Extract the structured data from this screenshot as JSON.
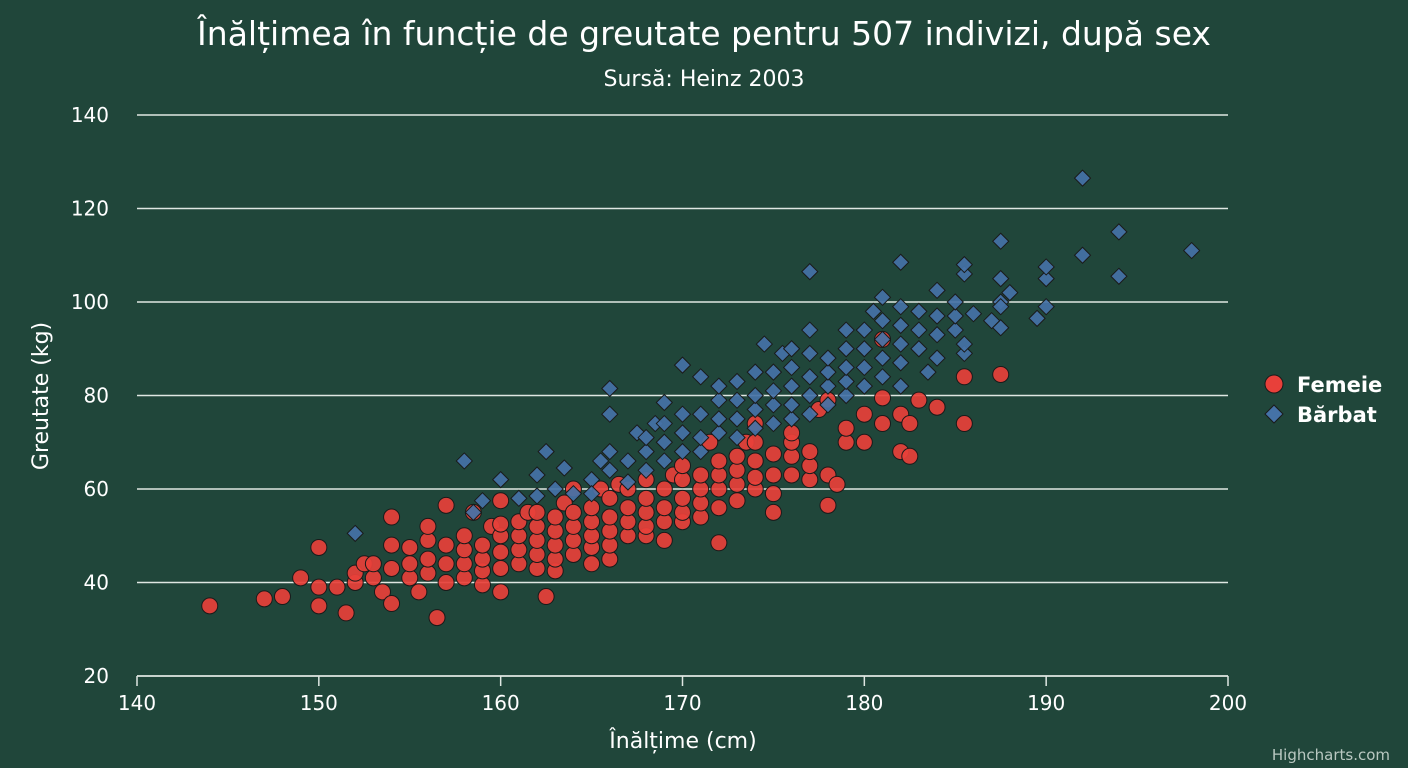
{
  "chart_data": {
    "type": "scatter",
    "title": "Înălțimea în funcție de greutate pentru 507 indivizi, după sex",
    "subtitle": "Sursă: Heinz 2003",
    "xlabel": "Înălțime (cm)",
    "ylabel": "Greutate (kg)",
    "xlim": [
      140,
      200
    ],
    "ylim": [
      20,
      140
    ],
    "xticks": [
      140,
      150,
      160,
      170,
      180,
      190,
      200
    ],
    "yticks": [
      20,
      40,
      60,
      80,
      100,
      120,
      140
    ],
    "grid": true,
    "legend_position": "right",
    "credits": "Highcharts.com",
    "series": [
      {
        "name": "Femeie",
        "color": "#e8403a",
        "marker": "circle",
        "points": [
          [
            144,
            35
          ],
          [
            147,
            36.5
          ],
          [
            148,
            37
          ],
          [
            149,
            41
          ],
          [
            150,
            35
          ],
          [
            150,
            39
          ],
          [
            150,
            47.5
          ],
          [
            151,
            39
          ],
          [
            151.5,
            33.5
          ],
          [
            152,
            40
          ],
          [
            152,
            42
          ],
          [
            152.5,
            44
          ],
          [
            153,
            41
          ],
          [
            153,
            44
          ],
          [
            153.5,
            38
          ],
          [
            154,
            43
          ],
          [
            154,
            35.5
          ],
          [
            154,
            48
          ],
          [
            154,
            54
          ],
          [
            155,
            41
          ],
          [
            155,
            44
          ],
          [
            155,
            47.5
          ],
          [
            155.5,
            38
          ],
          [
            156,
            42
          ],
          [
            156,
            45
          ],
          [
            156,
            49
          ],
          [
            156,
            52
          ],
          [
            156.5,
            32.5
          ],
          [
            157,
            40
          ],
          [
            157,
            44
          ],
          [
            157,
            48
          ],
          [
            157,
            56.5
          ],
          [
            158,
            41
          ],
          [
            158,
            44
          ],
          [
            158,
            47
          ],
          [
            158,
            50
          ],
          [
            158.5,
            55
          ],
          [
            159,
            39.5
          ],
          [
            159,
            42.5
          ],
          [
            159,
            45
          ],
          [
            159,
            48
          ],
          [
            159.5,
            52
          ],
          [
            160,
            38
          ],
          [
            160,
            43
          ],
          [
            160,
            46.5
          ],
          [
            160,
            50
          ],
          [
            160,
            52.5
          ],
          [
            160,
            57.5
          ],
          [
            161,
            44
          ],
          [
            161,
            47
          ],
          [
            161,
            50
          ],
          [
            161,
            53
          ],
          [
            161.5,
            55
          ],
          [
            162,
            43
          ],
          [
            162,
            46
          ],
          [
            162,
            49
          ],
          [
            162,
            52
          ],
          [
            162,
            55
          ],
          [
            162.5,
            37
          ],
          [
            163,
            42.5
          ],
          [
            163,
            45
          ],
          [
            163,
            48
          ],
          [
            163,
            51
          ],
          [
            163,
            54
          ],
          [
            163.5,
            57
          ],
          [
            164,
            46
          ],
          [
            164,
            49
          ],
          [
            164,
            52
          ],
          [
            164,
            55
          ],
          [
            164,
            60
          ],
          [
            165,
            44
          ],
          [
            165,
            47.5
          ],
          [
            165,
            50
          ],
          [
            165,
            53
          ],
          [
            165,
            56
          ],
          [
            165.5,
            60
          ],
          [
            166,
            45
          ],
          [
            166,
            48
          ],
          [
            166,
            51
          ],
          [
            166,
            54
          ],
          [
            166,
            58
          ],
          [
            166.5,
            61
          ],
          [
            167,
            50
          ],
          [
            167,
            53
          ],
          [
            167,
            56
          ],
          [
            167,
            60
          ],
          [
            168,
            50
          ],
          [
            168,
            52
          ],
          [
            168,
            55
          ],
          [
            168,
            58
          ],
          [
            168,
            62
          ],
          [
            169,
            49
          ],
          [
            169,
            53
          ],
          [
            169,
            56
          ],
          [
            169,
            60
          ],
          [
            169.5,
            63
          ],
          [
            170,
            53
          ],
          [
            170,
            55
          ],
          [
            170,
            58
          ],
          [
            170,
            62
          ],
          [
            170,
            65
          ],
          [
            171,
            54
          ],
          [
            171,
            57
          ],
          [
            171,
            60
          ],
          [
            171,
            63
          ],
          [
            171.5,
            70
          ],
          [
            172,
            48.5
          ],
          [
            172,
            56
          ],
          [
            172,
            60
          ],
          [
            172,
            63
          ],
          [
            172,
            66
          ],
          [
            173,
            57.5
          ],
          [
            173,
            61
          ],
          [
            173,
            64
          ],
          [
            173,
            67
          ],
          [
            173.5,
            70
          ],
          [
            174,
            60
          ],
          [
            174,
            62.5
          ],
          [
            174,
            66
          ],
          [
            174,
            70
          ],
          [
            174,
            74
          ],
          [
            175,
            55
          ],
          [
            175,
            59
          ],
          [
            175,
            63
          ],
          [
            175,
            67.5
          ],
          [
            176,
            63
          ],
          [
            176,
            67
          ],
          [
            176,
            70
          ],
          [
            176,
            72
          ],
          [
            177,
            62
          ],
          [
            177,
            65
          ],
          [
            177,
            68
          ],
          [
            177.5,
            77
          ],
          [
            178,
            56.5
          ],
          [
            178,
            63
          ],
          [
            178,
            79
          ],
          [
            178.5,
            61
          ],
          [
            179,
            70
          ],
          [
            179,
            73
          ],
          [
            180,
            70
          ],
          [
            180,
            76
          ],
          [
            181,
            74
          ],
          [
            181,
            79.5
          ],
          [
            181,
            92
          ],
          [
            182,
            68
          ],
          [
            182,
            76
          ],
          [
            182.5,
            67
          ],
          [
            182.5,
            74
          ],
          [
            183,
            79
          ],
          [
            184,
            77.5
          ],
          [
            185.5,
            74
          ],
          [
            185.5,
            84
          ],
          [
            187.5,
            84.5
          ]
        ]
      },
      {
        "name": "Bărbat",
        "color": "#4572a7",
        "marker": "diamond",
        "points": [
          [
            152,
            50.5
          ],
          [
            158,
            66
          ],
          [
            158.5,
            55
          ],
          [
            159,
            57.5
          ],
          [
            160,
            62
          ],
          [
            161,
            58
          ],
          [
            162,
            63
          ],
          [
            162,
            58.5
          ],
          [
            162.5,
            68
          ],
          [
            163,
            60
          ],
          [
            163.5,
            64.5
          ],
          [
            164,
            59
          ],
          [
            165,
            62
          ],
          [
            165,
            59
          ],
          [
            165.5,
            66
          ],
          [
            166,
            64
          ],
          [
            166,
            68
          ],
          [
            166,
            76
          ],
          [
            166,
            81.5
          ],
          [
            167,
            61.5
          ],
          [
            167,
            66
          ],
          [
            167.5,
            72
          ],
          [
            168,
            64
          ],
          [
            168,
            68
          ],
          [
            168,
            71
          ],
          [
            168.5,
            74
          ],
          [
            169,
            66
          ],
          [
            169,
            70
          ],
          [
            169,
            74
          ],
          [
            169,
            78.5
          ],
          [
            170,
            68
          ],
          [
            170,
            72
          ],
          [
            170,
            76
          ],
          [
            170,
            86.5
          ],
          [
            171,
            68
          ],
          [
            171,
            71
          ],
          [
            171,
            76
          ],
          [
            171,
            84
          ],
          [
            172,
            72
          ],
          [
            172,
            75
          ],
          [
            172,
            79
          ],
          [
            172,
            82
          ],
          [
            173,
            71
          ],
          [
            173,
            75
          ],
          [
            173,
            79
          ],
          [
            173,
            83
          ],
          [
            174,
            73
          ],
          [
            174,
            77
          ],
          [
            174,
            80
          ],
          [
            174,
            85
          ],
          [
            174.5,
            91
          ],
          [
            175,
            74
          ],
          [
            175,
            78
          ],
          [
            175,
            81
          ],
          [
            175,
            85
          ],
          [
            175.5,
            89
          ],
          [
            176,
            75
          ],
          [
            176,
            78
          ],
          [
            176,
            82
          ],
          [
            176,
            86
          ],
          [
            176,
            90
          ],
          [
            177,
            76
          ],
          [
            177,
            80
          ],
          [
            177,
            84
          ],
          [
            177,
            89
          ],
          [
            177,
            94
          ],
          [
            177,
            106.5
          ],
          [
            178,
            78
          ],
          [
            178,
            82
          ],
          [
            178,
            85
          ],
          [
            178,
            88
          ],
          [
            179,
            80
          ],
          [
            179,
            83
          ],
          [
            179,
            86
          ],
          [
            179,
            90
          ],
          [
            179,
            94
          ],
          [
            180,
            82
          ],
          [
            180,
            86
          ],
          [
            180,
            90
          ],
          [
            180,
            94
          ],
          [
            180.5,
            98
          ],
          [
            181,
            84
          ],
          [
            181,
            88
          ],
          [
            181,
            92
          ],
          [
            181,
            96
          ],
          [
            181,
            101
          ],
          [
            182,
            82
          ],
          [
            182,
            87
          ],
          [
            182,
            91
          ],
          [
            182,
            95
          ],
          [
            182,
            99
          ],
          [
            182,
            108.5
          ],
          [
            183,
            90
          ],
          [
            183,
            94
          ],
          [
            183,
            98
          ],
          [
            183.5,
            85
          ],
          [
            184,
            88
          ],
          [
            184,
            93
          ],
          [
            184,
            97
          ],
          [
            184,
            102.5
          ],
          [
            185,
            94
          ],
          [
            185,
            97
          ],
          [
            185,
            100
          ],
          [
            185.5,
            89
          ],
          [
            185.5,
            91
          ],
          [
            185.5,
            106
          ],
          [
            185.5,
            108
          ],
          [
            186,
            97.5
          ],
          [
            187,
            96
          ],
          [
            187.5,
            100
          ],
          [
            187.5,
            94.5
          ],
          [
            187.5,
            99
          ],
          [
            187.5,
            105
          ],
          [
            187.5,
            113
          ],
          [
            188,
            102
          ],
          [
            189.5,
            96.5
          ],
          [
            190,
            99
          ],
          [
            190,
            105
          ],
          [
            190,
            107.5
          ],
          [
            192,
            110
          ],
          [
            192,
            126.5
          ],
          [
            194,
            105.5
          ],
          [
            194,
            115
          ],
          [
            198,
            111
          ]
        ]
      }
    ]
  }
}
